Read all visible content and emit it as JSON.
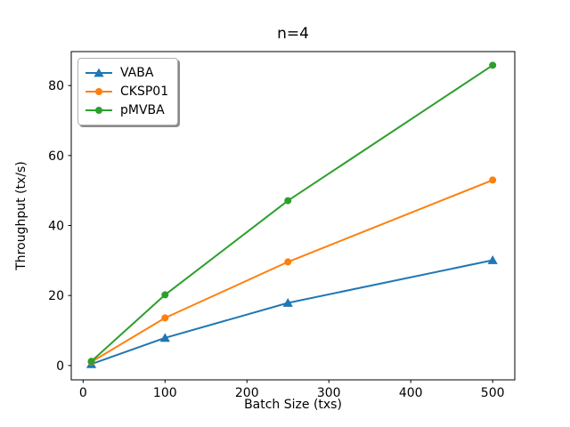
{
  "chart_data": {
    "type": "line",
    "title": "n=4",
    "xlabel": "Batch Size (txs)",
    "ylabel": "Throughput (tx/s)",
    "x": [
      10,
      100,
      250,
      500
    ],
    "series": [
      {
        "name": "VABA",
        "color": "#1f77b4",
        "marker": "triangle-up",
        "values": [
          0.4,
          7.9,
          17.9,
          30.1
        ]
      },
      {
        "name": "CKSP01",
        "color": "#ff7f0e",
        "marker": "circle",
        "values": [
          1.0,
          13.6,
          29.6,
          53.0
        ]
      },
      {
        "name": "pMVBA",
        "color": "#2ca02c",
        "marker": "circle",
        "values": [
          1.2,
          20.2,
          47.1,
          85.8
        ]
      }
    ],
    "xticks": [
      0,
      100,
      200,
      300,
      400,
      500
    ],
    "yticks": [
      0,
      20,
      40,
      60,
      80
    ],
    "xlim": [
      -14.5,
      527
    ],
    "ylim": [
      -4.1,
      89.7
    ],
    "grid": false,
    "legend_position": "upper-left",
    "axis_color": "#000000",
    "background_color": "#ffffff"
  }
}
